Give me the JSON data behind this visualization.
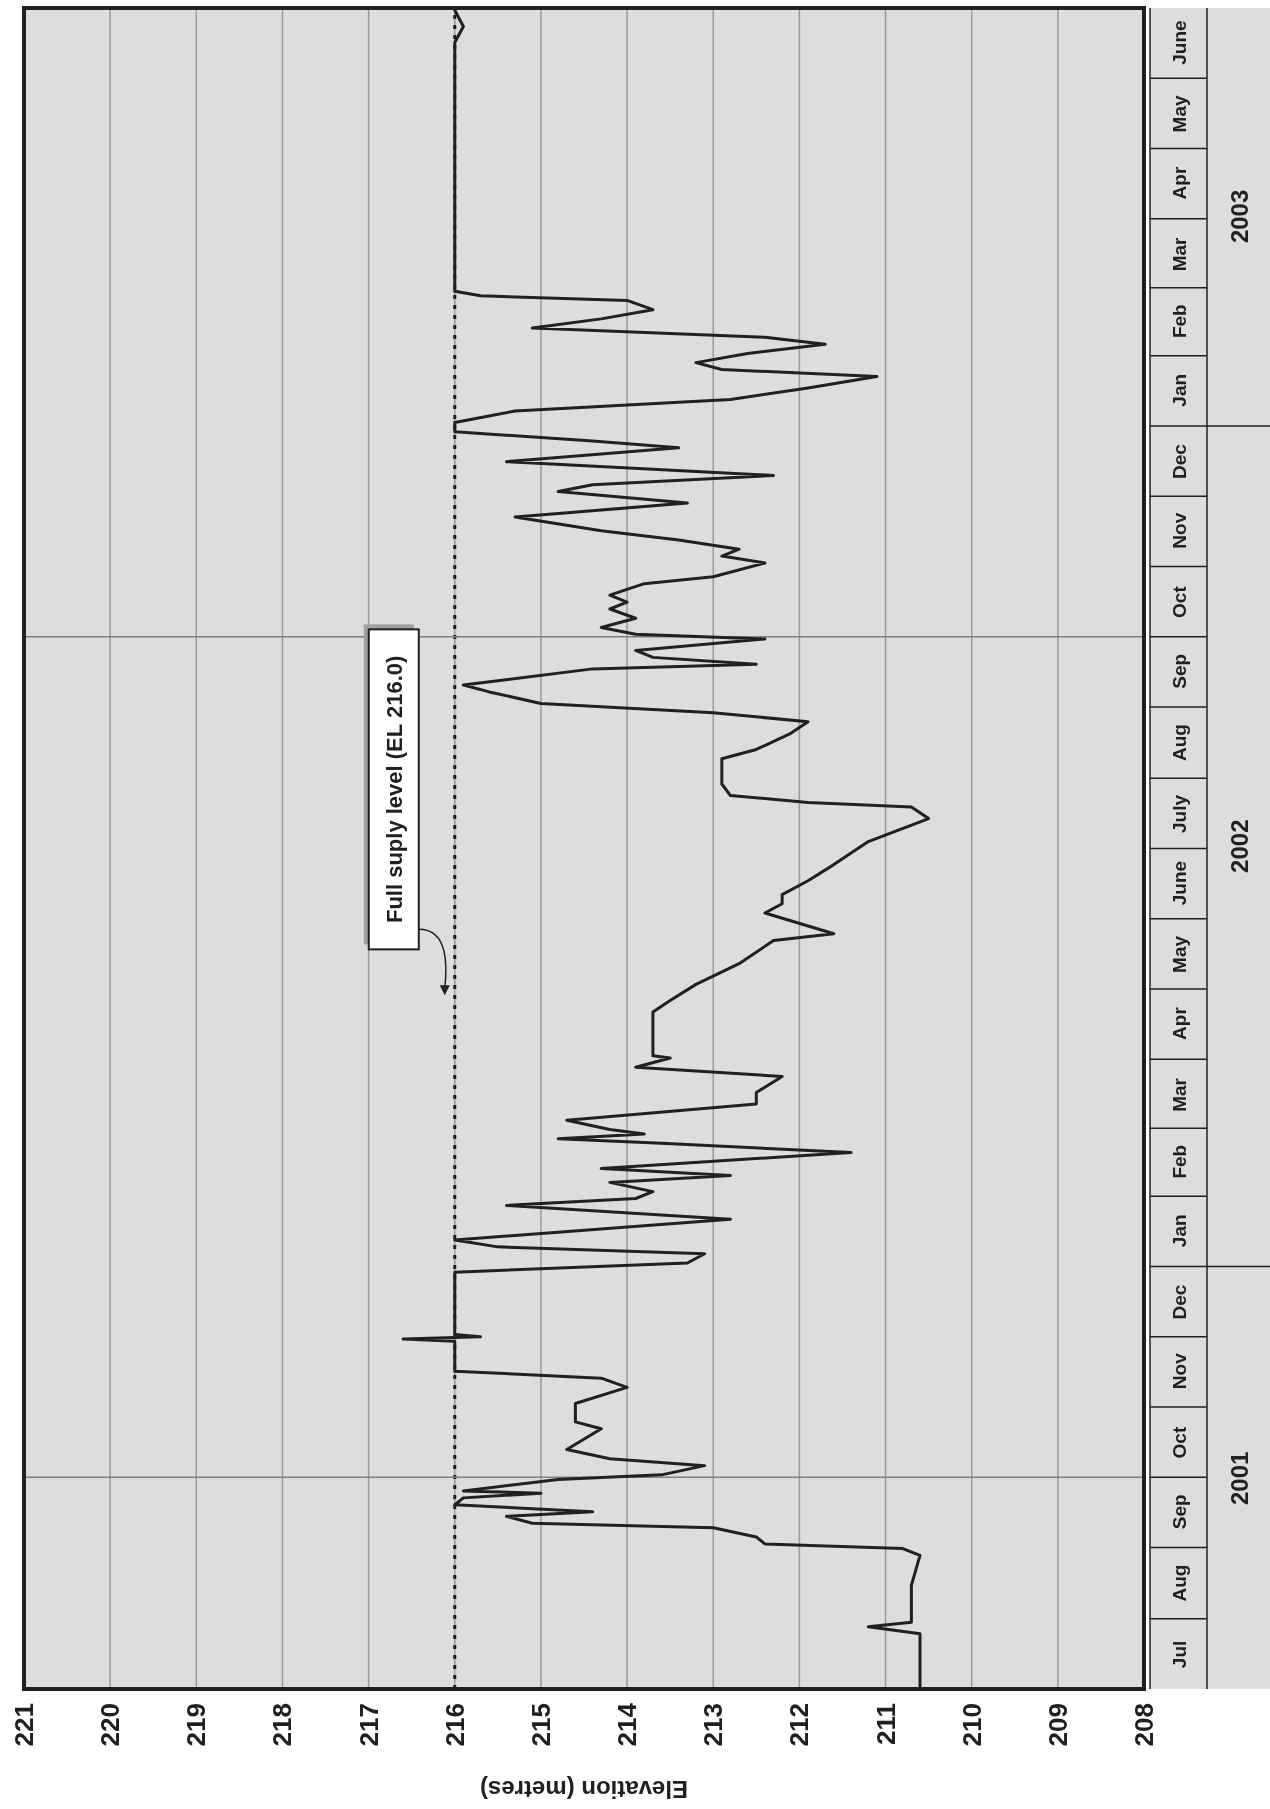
{
  "chart_data": {
    "type": "line",
    "orientation": "horizontal",
    "xlabel": "Elevation (metres)",
    "ylim": [
      "2001-07-01",
      "2003-07-01"
    ],
    "xlim": [
      221,
      208
    ],
    "xticks": [
      221,
      220,
      219,
      218,
      217,
      216,
      215,
      214,
      213,
      212,
      211,
      210,
      209,
      208
    ],
    "yticks": [
      {
        "value": "2001-07-16",
        "label": "Jul"
      },
      {
        "value": "2001-08-16",
        "label": "Aug"
      },
      {
        "value": "2001-09-16",
        "label": "Sep"
      },
      {
        "value": "2001-10-16",
        "label": "Oct"
      },
      {
        "value": "2001-11-16",
        "label": "Nov"
      },
      {
        "value": "2001-12-16",
        "label": "Dec"
      },
      {
        "value": "2002-01-16",
        "label": "Jan"
      },
      {
        "value": "2002-02-15",
        "label": "Feb"
      },
      {
        "value": "2002-03-16",
        "label": "Mar"
      },
      {
        "value": "2002-04-16",
        "label": "Apr"
      },
      {
        "value": "2002-05-16",
        "label": "May"
      },
      {
        "value": "2002-06-16",
        "label": "June"
      },
      {
        "value": "2002-07-16",
        "label": "July"
      },
      {
        "value": "2002-08-16",
        "label": "Aug"
      },
      {
        "value": "2002-09-16",
        "label": "Sep"
      },
      {
        "value": "2002-10-16",
        "label": "Oct"
      },
      {
        "value": "2002-11-16",
        "label": "Nov"
      },
      {
        "value": "2002-12-16",
        "label": "Dec"
      },
      {
        "value": "2003-01-16",
        "label": "Jan"
      },
      {
        "value": "2003-02-15",
        "label": "Feb"
      },
      {
        "value": "2003-03-16",
        "label": "Mar"
      },
      {
        "value": "2003-04-16",
        "label": "Apr"
      },
      {
        "value": "2003-05-16",
        "label": "May"
      },
      {
        "value": "2003-06-16",
        "label": "June"
      }
    ],
    "grid": "x",
    "marker": "none",
    "line_style": "solid",
    "ref_lines": [
      {
        "axis": "x",
        "value": 216,
        "label": "Full suply level (EL 216.0)",
        "line_style": "dotted",
        "color": "#231f20"
      },
      {
        "axis": "y",
        "value": "2001-10-01",
        "color": "#808080",
        "line_style": "solid"
      },
      {
        "axis": "y",
        "value": "2002-10-01",
        "color": "#808080",
        "line_style": "solid"
      }
    ],
    "annotations": [
      "2001",
      "2002",
      "2003"
    ],
    "series": [
      {
        "color": "#231f20",
        "x": [
          "2001-07-01",
          "2001-07-08",
          "2001-07-25",
          "2001-07-28",
          "2001-07-30",
          "2001-08-05",
          "2001-08-15",
          "2001-08-28",
          "2001-08-31",
          "2001-09-02",
          "2001-09-05",
          "2001-09-09",
          "2001-09-11",
          "2001-09-14",
          "2001-09-16",
          "2001-09-19",
          "2001-09-22",
          "2001-09-24",
          "2001-09-25",
          "2001-09-30",
          "2001-10-02",
          "2001-10-06",
          "2001-10-09",
          "2001-10-13",
          "2001-10-22",
          "2001-10-25",
          "2001-11-02",
          "2001-11-09",
          "2001-11-13",
          "2001-11-16",
          "2001-11-21",
          "2001-11-29",
          "2001-11-30",
          "2001-12-01",
          "2001-12-02",
          "2001-12-29",
          "2002-01-02",
          "2002-01-06",
          "2002-01-09",
          "2002-01-12",
          "2002-01-21",
          "2002-01-27",
          "2002-01-30",
          "2002-02-02",
          "2002-02-06",
          "2002-02-09",
          "2002-02-12",
          "2002-02-19",
          "2002-02-23",
          "2002-02-25",
          "2002-02-27",
          "2002-03-01",
          "2002-03-05",
          "2002-03-12",
          "2002-03-17",
          "2002-03-24",
          "2002-03-28",
          "2002-04-01",
          "2002-04-02",
          "2002-04-21",
          "2002-04-26",
          "2002-05-03",
          "2002-05-12",
          "2002-05-22",
          "2002-05-25",
          "2002-06-03",
          "2002-06-07",
          "2002-06-11",
          "2002-06-17",
          "2002-06-24",
          "2002-07-04",
          "2002-07-14",
          "2002-07-19",
          "2002-07-21",
          "2002-07-24",
          "2002-07-29",
          "2002-08-03",
          "2002-08-09",
          "2002-08-13",
          "2002-08-20",
          "2002-08-25",
          "2002-08-29",
          "2002-09-02",
          "2002-09-07",
          "2002-09-10",
          "2002-09-17",
          "2002-09-19",
          "2002-09-22",
          "2002-09-25",
          "2002-09-30",
          "2002-10-02",
          "2002-10-05",
          "2002-10-09",
          "2002-10-13",
          "2002-10-16",
          "2002-10-19",
          "2002-10-24",
          "2002-10-27",
          "2002-11-02",
          "2002-11-05",
          "2002-11-08",
          "2002-11-12",
          "2002-11-16",
          "2002-11-22",
          "2002-11-28",
          "2002-12-03",
          "2002-12-06",
          "2002-12-10",
          "2002-12-16",
          "2002-12-22",
          "2002-12-25",
          "2002-12-29",
          "2003-01-02",
          "2003-01-07",
          "2003-01-12",
          "2003-01-17",
          "2003-01-22",
          "2003-01-25",
          "2003-01-28",
          "2003-02-01",
          "2003-02-05",
          "2003-02-08",
          "2003-02-12",
          "2003-02-16",
          "2003-02-20",
          "2003-02-24",
          "2003-02-26",
          "2003-02-28",
          "2003-03-18",
          "2003-05-31",
          "2003-06-16",
          "2003-06-23",
          "2003-06-30"
        ],
        "values": [
          210.6,
          210.6,
          210.6,
          211.2,
          210.7,
          210.7,
          210.7,
          210.6,
          210.8,
          212.4,
          212.5,
          213.0,
          215.1,
          215.4,
          214.4,
          216.0,
          215.9,
          215.0,
          215.9,
          214.8,
          213.6,
          213.1,
          214.2,
          214.7,
          214.3,
          214.6,
          214.6,
          214.0,
          214.3,
          216.0,
          216.0,
          216.0,
          216.6,
          215.7,
          216.0,
          216.0,
          213.3,
          213.1,
          215.5,
          216.0,
          212.8,
          215.4,
          213.9,
          213.7,
          214.2,
          212.8,
          214.3,
          211.4,
          213.6,
          214.8,
          213.8,
          214.2,
          214.7,
          212.5,
          212.5,
          212.2,
          213.9,
          213.5,
          213.7,
          213.7,
          213.5,
          213.2,
          212.7,
          212.3,
          211.6,
          212.4,
          212.2,
          212.2,
          211.9,
          211.6,
          211.2,
          210.5,
          210.7,
          211.9,
          212.8,
          212.9,
          212.9,
          212.9,
          212.5,
          212.1,
          211.9,
          213.0,
          215.0,
          215.6,
          215.9,
          214.4,
          212.5,
          213.7,
          213.9,
          212.4,
          213.9,
          214.3,
          213.9,
          214.2,
          214.0,
          214.2,
          213.8,
          213.0,
          212.4,
          212.9,
          212.7,
          213.4,
          214.3,
          215.3,
          213.3,
          214.8,
          214.4,
          212.3,
          215.4,
          213.4,
          214.4,
          216.0,
          216.0,
          215.3,
          212.8,
          211.9,
          211.1,
          212.9,
          213.2,
          212.6,
          211.7,
          212.4,
          215.1,
          214.3,
          213.7,
          214.0,
          215.7,
          216.0,
          216.0,
          216.0,
          216.0,
          215.9,
          216.0
        ]
      }
    ]
  }
}
